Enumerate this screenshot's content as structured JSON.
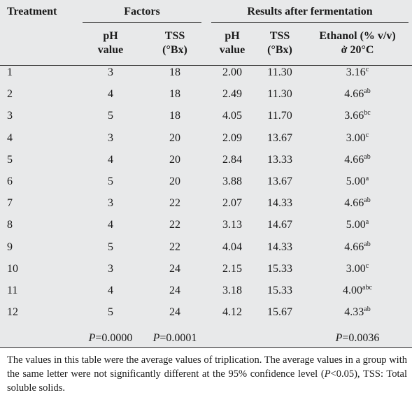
{
  "header": {
    "treatment": "Treatment",
    "factors": "Factors",
    "results": "Results after fermentation",
    "ph_value_line1": "pH",
    "ph_value_line2": "value",
    "tss_line1": "TSS",
    "tss_line2": "(°Bx)",
    "res_ph_line1": "pH",
    "res_ph_line2": "value",
    "res_tss_line1": "TSS",
    "res_tss_line2": "(°Bx)",
    "ethanol_line1": "Ethanol (% v/v)",
    "ethanol_line2": "ở 20°C"
  },
  "rows": [
    {
      "treatment": "1",
      "ph": "3",
      "tss": "18",
      "res_ph": "2.00",
      "res_tss": "11.30",
      "ethanol": "3.16",
      "ethanol_sup": "c"
    },
    {
      "treatment": "2",
      "ph": "4",
      "tss": "18",
      "res_ph": "2.49",
      "res_tss": "11.30",
      "ethanol": "4.66",
      "ethanol_sup": "ab"
    },
    {
      "treatment": "3",
      "ph": "5",
      "tss": "18",
      "res_ph": "4.05",
      "res_tss": "11.70",
      "ethanol": "3.66",
      "ethanol_sup": "bc"
    },
    {
      "treatment": "4",
      "ph": "3",
      "tss": "20",
      "res_ph": "2.09",
      "res_tss": "13.67",
      "ethanol": "3.00",
      "ethanol_sup": "c"
    },
    {
      "treatment": "5",
      "ph": "4",
      "tss": "20",
      "res_ph": "2.84",
      "res_tss": "13.33",
      "ethanol": "4.66",
      "ethanol_sup": "ab"
    },
    {
      "treatment": "6",
      "ph": "5",
      "tss": "20",
      "res_ph": "3.88",
      "res_tss": "13.67",
      "ethanol": "5.00",
      "ethanol_sup": "a"
    },
    {
      "treatment": "7",
      "ph": "3",
      "tss": "22",
      "res_ph": "2.07",
      "res_tss": "14.33",
      "ethanol": "4.66",
      "ethanol_sup": "ab"
    },
    {
      "treatment": "8",
      "ph": "4",
      "tss": "22",
      "res_ph": "3.13",
      "res_tss": "14.67",
      "ethanol": "5.00",
      "ethanol_sup": "a"
    },
    {
      "treatment": "9",
      "ph": "5",
      "tss": "22",
      "res_ph": "4.04",
      "res_tss": "14.33",
      "ethanol": "4.66",
      "ethanol_sup": "ab"
    },
    {
      "treatment": "10",
      "ph": "3",
      "tss": "24",
      "res_ph": "2.15",
      "res_tss": "15.33",
      "ethanol": "3.00",
      "ethanol_sup": "c"
    },
    {
      "treatment": "11",
      "ph": "4",
      "tss": "24",
      "res_ph": "3.18",
      "res_tss": "15.33",
      "ethanol": "4.00",
      "ethanol_sup": "abc"
    },
    {
      "treatment": "12",
      "ph": "5",
      "tss": "24",
      "res_ph": "4.12",
      "res_tss": "15.67",
      "ethanol": "4.33",
      "ethanol_sup": "ab"
    }
  ],
  "pvalues": {
    "p_letter": "P",
    "ph": "=0.0000",
    "tss": "=0.0001",
    "ethanol": "=0.0036"
  },
  "footnote": {
    "text_a": "The values in this table were the average values of triplication. The average values in a group with the same letter were not significantly different at the 95% confidence level (",
    "p_letter": "P",
    "text_b": "<0.05), TSS: Total soluble solids."
  }
}
